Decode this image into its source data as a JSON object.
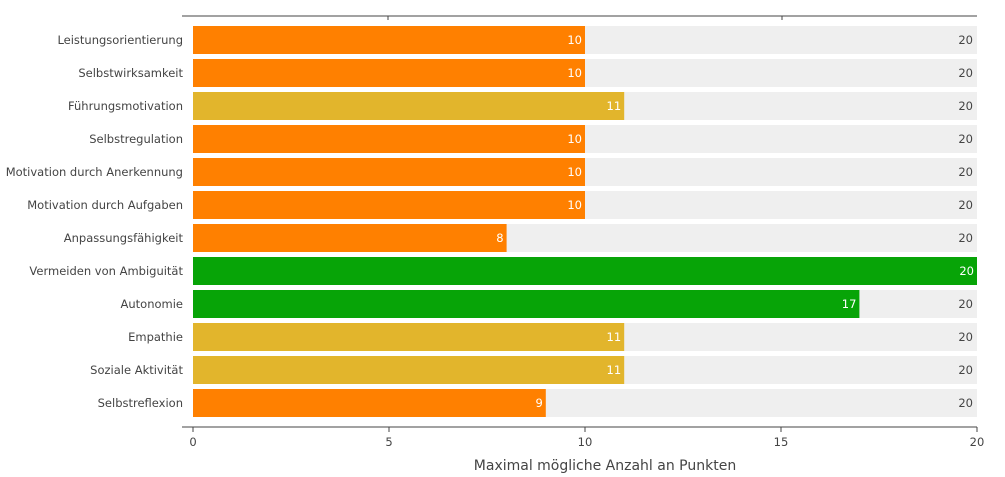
{
  "chart_data": {
    "type": "bar",
    "orientation": "horizontal",
    "categories": [
      "Leistungsorientierung",
      "Selbstwirksamkeit",
      "Führungsmotivation",
      "Selbstregulation",
      "Motivation durch Anerkennung",
      "Motivation durch Aufgaben",
      "Anpassungsfähigkeit",
      "Vermeiden von Ambiguität",
      "Autonomie",
      "Empathie",
      "Soziale Aktivität",
      "Selbstreflexion"
    ],
    "values": [
      10,
      10,
      11,
      10,
      10,
      10,
      8,
      20,
      17,
      11,
      11,
      9
    ],
    "max_values": [
      20,
      20,
      20,
      20,
      20,
      20,
      20,
      20,
      20,
      20,
      20,
      20
    ],
    "bar_colors": [
      "#ff8000",
      "#ff8000",
      "#e2b52c",
      "#ff8000",
      "#ff8000",
      "#ff8000",
      "#ff8000",
      "#07a407",
      "#07a407",
      "#e2b52c",
      "#e2b52c",
      "#ff8000"
    ],
    "background_bar_color": "#efefef",
    "xlim": [
      0,
      20
    ],
    "xticks": [
      0,
      5,
      10,
      15,
      20
    ],
    "xlabel": "Maximal mögliche Anzahl an Punkten",
    "ylabel": "",
    "title": "",
    "grid": false,
    "legend": "none"
  }
}
